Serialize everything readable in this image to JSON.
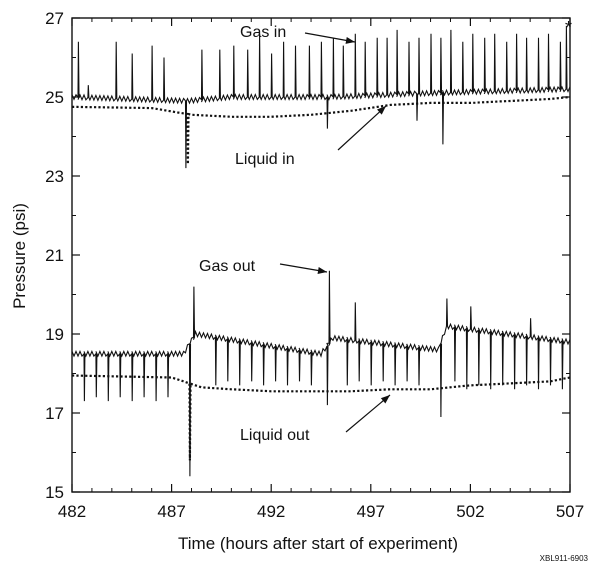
{
  "chart_data": {
    "type": "line",
    "xlabel": "Time  (hours after start of experiment)",
    "ylabel": "Pressure  (psi)",
    "xlim": [
      482,
      507
    ],
    "ylim": [
      15,
      27
    ],
    "xticks": [
      482,
      487,
      492,
      497,
      502,
      507
    ],
    "yticks": [
      15,
      17,
      19,
      21,
      23,
      25,
      27
    ],
    "grid": false,
    "legend": "none",
    "series": [
      {
        "name": "Gas in",
        "style": "solid",
        "baseline": [
          [
            482,
            25.0
          ],
          [
            487.8,
            24.9
          ],
          [
            490,
            25.0
          ],
          [
            495,
            25.0
          ],
          [
            500,
            25.1
          ],
          [
            507,
            25.2
          ]
        ],
        "spikes": [
          [
            482.3,
            26.4
          ],
          [
            482.8,
            25.3
          ],
          [
            484.2,
            26.4
          ],
          [
            485.0,
            26.1
          ],
          [
            486.0,
            26.3
          ],
          [
            486.6,
            26.0
          ],
          [
            488.5,
            26.2
          ],
          [
            489.4,
            26.2
          ],
          [
            490.1,
            26.3
          ],
          [
            490.8,
            26.2
          ],
          [
            491.4,
            26.6
          ],
          [
            492.0,
            26.1
          ],
          [
            492.6,
            26.4
          ],
          [
            493.2,
            26.3
          ],
          [
            493.9,
            26.3
          ],
          [
            494.5,
            26.4
          ],
          [
            495.1,
            26.5
          ],
          [
            495.6,
            26.3
          ],
          [
            496.2,
            26.6
          ],
          [
            496.7,
            26.4
          ],
          [
            497.3,
            26.5
          ],
          [
            497.8,
            26.5
          ],
          [
            498.3,
            26.7
          ],
          [
            498.9,
            26.4
          ],
          [
            499.4,
            26.5
          ],
          [
            500.0,
            26.6
          ],
          [
            500.5,
            26.5
          ],
          [
            501.0,
            26.7
          ],
          [
            501.6,
            26.4
          ],
          [
            502.1,
            26.6
          ],
          [
            502.7,
            26.5
          ],
          [
            503.2,
            26.6
          ],
          [
            503.8,
            26.4
          ],
          [
            504.3,
            26.6
          ],
          [
            504.8,
            26.5
          ],
          [
            505.4,
            26.5
          ],
          [
            505.9,
            26.6
          ],
          [
            506.5,
            26.4
          ],
          [
            506.8,
            26.8
          ]
        ],
        "dips": [
          [
            487.7,
            23.2
          ],
          [
            494.8,
            24.2
          ],
          [
            499.3,
            24.4
          ],
          [
            500.6,
            23.8
          ]
        ]
      },
      {
        "name": "Liquid in",
        "style": "dotted",
        "points": [
          [
            482,
            24.75
          ],
          [
            486,
            24.72
          ],
          [
            488,
            24.55
          ],
          [
            490,
            24.5
          ],
          [
            492,
            24.5
          ],
          [
            494,
            24.55
          ],
          [
            496,
            24.65
          ],
          [
            498,
            24.8
          ],
          [
            500,
            24.85
          ],
          [
            502,
            24.85
          ],
          [
            504,
            24.9
          ],
          [
            506,
            24.95
          ],
          [
            507,
            25.0
          ]
        ],
        "dips": [
          [
            487.8,
            23.3
          ]
        ]
      },
      {
        "name": "Gas out",
        "style": "solid",
        "baseline": [
          [
            482,
            18.5
          ],
          [
            487.6,
            18.5
          ],
          [
            488.2,
            19.0
          ],
          [
            494.5,
            18.5
          ],
          [
            495.1,
            18.9
          ],
          [
            500.4,
            18.6
          ],
          [
            500.8,
            19.2
          ],
          [
            507,
            18.8
          ]
        ],
        "spikes": [
          [
            488.1,
            20.2
          ],
          [
            494.9,
            20.6
          ],
          [
            496.2,
            19.8
          ],
          [
            500.8,
            19.9
          ],
          [
            502.0,
            19.7
          ],
          [
            505.0,
            19.4
          ]
        ],
        "dips": [
          [
            482.6,
            17.3
          ],
          [
            483.2,
            17.4
          ],
          [
            483.8,
            17.3
          ],
          [
            484.4,
            17.4
          ],
          [
            485.0,
            17.3
          ],
          [
            485.6,
            17.4
          ],
          [
            486.2,
            17.3
          ],
          [
            486.8,
            17.4
          ],
          [
            487.9,
            15.4
          ],
          [
            489.2,
            17.7
          ],
          [
            489.8,
            17.8
          ],
          [
            490.4,
            17.7
          ],
          [
            491.0,
            17.8
          ],
          [
            491.6,
            17.7
          ],
          [
            492.2,
            17.8
          ],
          [
            492.8,
            17.7
          ],
          [
            493.4,
            17.8
          ],
          [
            494.0,
            17.7
          ],
          [
            494.8,
            17.2
          ],
          [
            495.8,
            17.7
          ],
          [
            496.4,
            17.8
          ],
          [
            497.0,
            17.7
          ],
          [
            497.6,
            17.8
          ],
          [
            498.2,
            17.7
          ],
          [
            498.8,
            17.8
          ],
          [
            499.4,
            17.7
          ],
          [
            500.5,
            16.9
          ],
          [
            501.2,
            17.8
          ],
          [
            501.8,
            17.6
          ],
          [
            502.4,
            17.7
          ],
          [
            503.0,
            17.6
          ],
          [
            503.6,
            17.7
          ],
          [
            504.2,
            17.6
          ],
          [
            504.8,
            17.7
          ],
          [
            505.4,
            17.6
          ],
          [
            506.0,
            17.7
          ],
          [
            506.6,
            17.6
          ]
        ]
      },
      {
        "name": "Liquid out",
        "style": "dotted",
        "points": [
          [
            482,
            17.95
          ],
          [
            485,
            17.92
          ],
          [
            487,
            17.9
          ],
          [
            488.5,
            17.65
          ],
          [
            490,
            17.6
          ],
          [
            492,
            17.55
          ],
          [
            494,
            17.55
          ],
          [
            496,
            17.55
          ],
          [
            498,
            17.6
          ],
          [
            500,
            17.6
          ],
          [
            502,
            17.7
          ],
          [
            504,
            17.75
          ],
          [
            506,
            17.8
          ],
          [
            507,
            17.9
          ]
        ],
        "dips": [
          [
            487.9,
            15.8
          ]
        ]
      }
    ],
    "annotations": [
      {
        "text": "Gas in",
        "target_series": "Gas in"
      },
      {
        "text": "Liquid in",
        "target_series": "Liquid in"
      },
      {
        "text": "Gas out",
        "target_series": "Gas out"
      },
      {
        "text": "Liquid out",
        "target_series": "Liquid out"
      },
      {
        "text": "*"
      }
    ],
    "footnote": "XBL911-6903"
  }
}
